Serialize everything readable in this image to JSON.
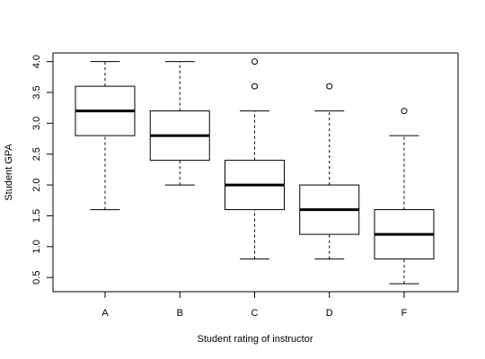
{
  "chart_data": {
    "type": "box",
    "title": "",
    "xlabel": "Student rating of instructor",
    "ylabel": "Student GPA",
    "ylim": [
      0.27,
      4.14
    ],
    "yticks": [
      "0.5",
      "1.0",
      "1.5",
      "2.0",
      "2.5",
      "3.0",
      "3.5",
      "4.0"
    ],
    "grid": false,
    "legend": "none",
    "categories": [
      "A",
      "B",
      "C",
      "D",
      "F"
    ],
    "boxes": [
      {
        "category": "A",
        "whisker_low": 1.6,
        "q1": 2.8,
        "median": 3.2,
        "q3": 3.6,
        "whisker_high": 4.0,
        "outliers": []
      },
      {
        "category": "B",
        "whisker_low": 2.0,
        "q1": 2.4,
        "median": 2.8,
        "q3": 3.2,
        "whisker_high": 4.0,
        "outliers": []
      },
      {
        "category": "C",
        "whisker_low": 0.8,
        "q1": 1.6,
        "median": 2.0,
        "q3": 2.4,
        "whisker_high": 3.2,
        "outliers": [
          3.6,
          4.0
        ]
      },
      {
        "category": "D",
        "whisker_low": 0.8,
        "q1": 1.2,
        "median": 1.6,
        "q3": 2.0,
        "whisker_high": 3.2,
        "outliers": [
          3.6
        ]
      },
      {
        "category": "F",
        "whisker_low": 0.4,
        "q1": 0.8,
        "median": 1.2,
        "q3": 1.6,
        "whisker_high": 2.8,
        "outliers": [
          3.2
        ]
      }
    ],
    "colors": {
      "box_fill": "#ffffff",
      "stroke": "#000000"
    }
  }
}
